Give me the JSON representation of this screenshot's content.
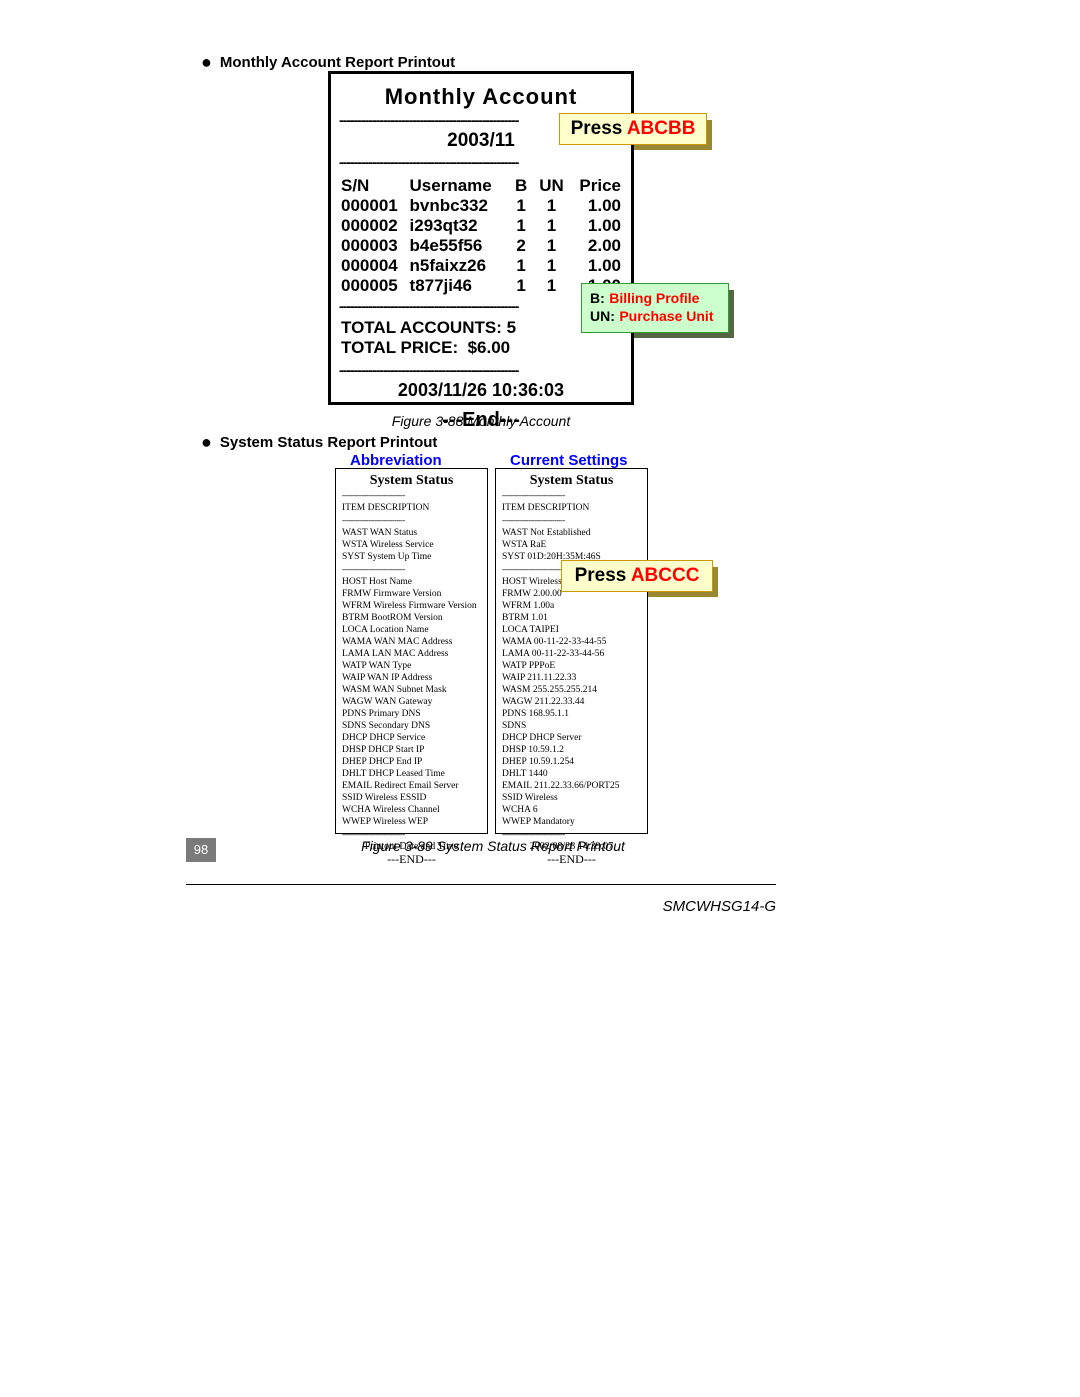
{
  "colors": {
    "yellow_bg": "#ffffcc",
    "yellow_border": "#cc9900",
    "green_bg": "#ccffcc",
    "green_border": "#339933",
    "red": "#ff0000",
    "blue": "#0000ff",
    "page_num_bg": "#7a7a7a"
  },
  "header1": "Monthly Account Report Printout",
  "monthly": {
    "title": "Monthly Account",
    "period": "2003/11",
    "divider": "-------------------------------------------------",
    "columns": {
      "sn": "S/N",
      "user": "Username",
      "b": "B",
      "un": "UN",
      "price": "Price"
    },
    "rows": [
      {
        "sn": "000001",
        "user": "bvnbc332",
        "b": "1",
        "un": "1",
        "price": "1.00"
      },
      {
        "sn": "000002",
        "user": "i293qt32",
        "b": "1",
        "un": "1",
        "price": "1.00"
      },
      {
        "sn": "000003",
        "user": "b4e55f56",
        "b": "2",
        "un": "1",
        "price": "2.00"
      },
      {
        "sn": "000004",
        "user": "n5faixz26",
        "b": "1",
        "un": "1",
        "price": "1.00"
      },
      {
        "sn": "000005",
        "user": "t877ji46",
        "b": "1",
        "un": "1",
        "price": "1.00"
      }
    ],
    "total_accounts_label": "TOTAL ACCOUNTS:",
    "total_accounts_value": "5",
    "total_price_label": "TOTAL PRICE:",
    "total_price_value": "$6.00",
    "timestamp": "2003/11/26 10:36:03",
    "end": "---End---"
  },
  "callout1": {
    "press": "Press",
    "code": "ABCBB"
  },
  "legend": {
    "b_key": "B:",
    "b_val": "Billing Profile",
    "un_key": "UN:",
    "un_val": "Purchase Unit"
  },
  "caption1": "Figure 3-88 Monthly Account",
  "header2": "System Status Report Printout",
  "abbr_title": "Abbreviation",
  "curr_title": "Current Settings",
  "callout2": {
    "press": "Press",
    "code": "ABCCC"
  },
  "ss": {
    "title": "System Status",
    "header": "ITEM  DESCRIPTION",
    "divider": "-----------------------------",
    "group1": [
      "WAST  WAN Status",
      "WSTA  Wireless Service",
      "SYST  System Up Time"
    ],
    "group2": [
      "HOST  Host Name",
      "FRMW  Firmware Version",
      "WFRM  Wireless Firmware Version",
      "BTRM  BootROM Version",
      "LOCA  Location Name",
      "WAMA  WAN MAC Address",
      "LAMA  LAN MAC Address",
      "WATP  WAN Type",
      "WAIP  WAN IP Address",
      "WASM  WAN Subnet Mask",
      "WAGW  WAN Gateway",
      "PDNS  Primary DNS",
      "SDNS  Secondary DNS",
      "DHCP  DHCP Service",
      "DHSP  DHCP Start IP",
      "DHEP  DHCP End IP",
      "DHLT  DHCP Leased Time",
      "EMAIL Redirect Email Server",
      "SSID  Wireless ESSID",
      "WCHA  Wireless Channel",
      "WWEP  Wireless WEP"
    ],
    "foot1": "Printout Date and Time",
    "end": "---END---"
  },
  "cs": {
    "title": "System Status",
    "header": "ITEM  DESCRIPTION",
    "divider": "-----------------------------",
    "group1": [
      "WAST  Not Established",
      "WSTA  RaE",
      "SYST  01D:20H:35M:46S"
    ],
    "group2": [
      "HOST  Wireless",
      "FRMW  2.00.00",
      "WFRM  1.00a",
      "BTRM  1.01",
      "LOCA  TAIPEI",
      "WAMA  00-11-22-33-44-55",
      "LAMA  00-11-22-33-44-56",
      "WATP  PPPoE",
      "WAIP  211.11.22.33",
      "WASM  255.255.255.214",
      "WAGW  211.22.33.44",
      "PDNS  168.95.1.1",
      "SDNS",
      "DHCP  DHCP Server",
      "DHSP  10.59.1.2",
      "DHEP  10.59.1.254",
      "DHLT  1440",
      "EMAIL 211.22.33.66/PORT25",
      "SSID  Wireless",
      "WCHA  6",
      "WWEP  Mandatory"
    ],
    "foot1": "2002/08/28 14:39:07",
    "end": "---END---"
  },
  "caption2": "Figure 3-89 System Status Report Printout",
  "page_number": "98",
  "footer_model": "SMCWHSG14-G"
}
